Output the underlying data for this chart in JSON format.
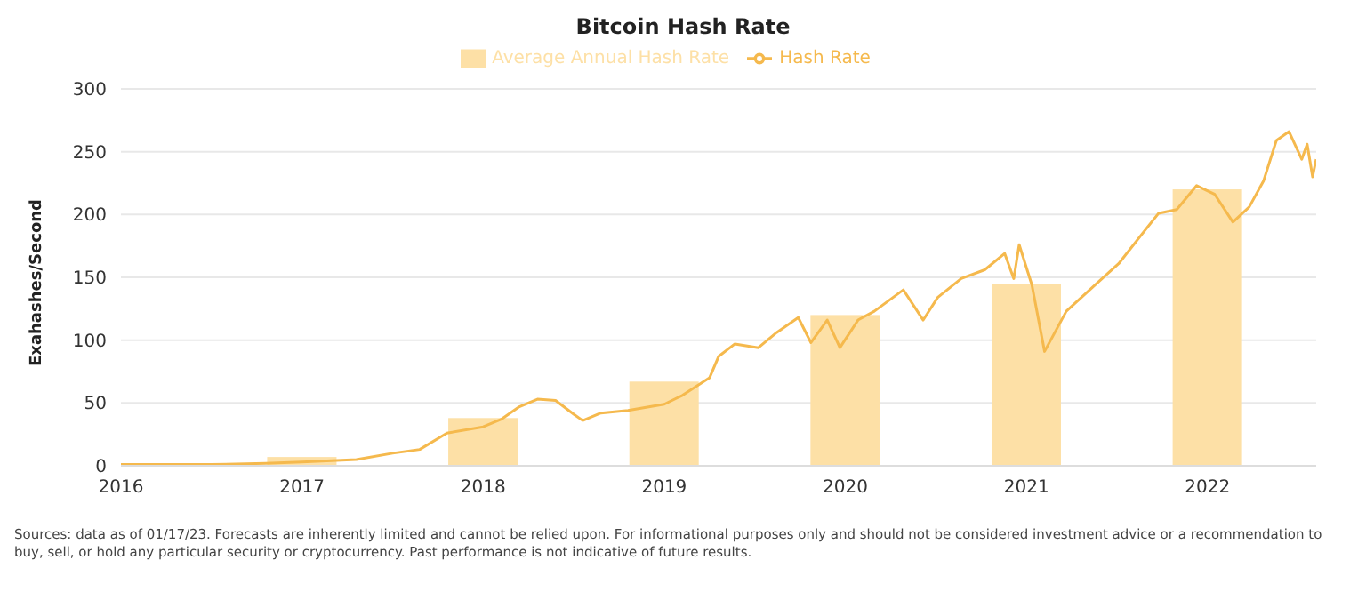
{
  "chart_data": {
    "type": "line",
    "title": "Bitcoin Hash Rate",
    "ylabel": "Exahashes/Second",
    "xlim": [
      2016,
      2022.6
    ],
    "xticks": [
      2016,
      2017,
      2018,
      2019,
      2020,
      2021,
      2022
    ],
    "ylim": [
      0,
      300
    ],
    "yticks": [
      0,
      50,
      100,
      150,
      200,
      250,
      300
    ],
    "grid": "y",
    "legend": "top",
    "series": [
      {
        "name": "Average Annual Hash Rate",
        "type": "bar",
        "color": "#fde0a6",
        "x": [
          2017,
          2018,
          2019,
          2020,
          2021,
          2022
        ],
        "values": [
          7,
          38,
          67,
          120,
          145,
          220
        ]
      },
      {
        "name": "Hash Rate",
        "color": "#f5b94d",
        "x": [
          2016,
          2016.5,
          2016.8,
          2017,
          2017.3,
          2017.5,
          2017.65,
          2017.8,
          2018,
          2018.1,
          2018.2,
          2018.3,
          2018.4,
          2018.5,
          2018.55,
          2018.65,
          2018.8,
          2019,
          2019.1,
          2019.25,
          2019.3,
          2019.39,
          2019.52,
          2019.62,
          2019.74,
          2019.81,
          2019.9,
          2019.97,
          2020.07,
          2020.16,
          2020.32,
          2020.43,
          2020.51,
          2020.64,
          2020.77,
          2020.88,
          2020.93,
          2020.96,
          2021.03,
          2021.1,
          2021.22,
          2021.38,
          2021.51,
          2021.63,
          2021.73,
          2021.83,
          2021.94,
          2022.04,
          2022.14,
          2022.23,
          2022.31,
          2022.38,
          2022.45,
          2022.52,
          2022.55,
          2022.58,
          2022.6
        ],
        "values": [
          1,
          1,
          2,
          3,
          5,
          10,
          13,
          26,
          31,
          37,
          47,
          53,
          52,
          41,
          36,
          42,
          44,
          49,
          56,
          70,
          87,
          97,
          94,
          106,
          118,
          98,
          116,
          94,
          116,
          123,
          140,
          116,
          134,
          149,
          156,
          169,
          149,
          176,
          144,
          91,
          123,
          144,
          161,
          183,
          201,
          204,
          223,
          216,
          194,
          206,
          227,
          259,
          266,
          244,
          256,
          230,
          244
        ]
      }
    ],
    "annotations": [
      "Sources: data as of 01/17/23. Forecasts are inherently limited and cannot be relied upon. For informational purposes only and should not be considered investment advice or a recommendation to buy, sell, or hold any particular security or cryptocurrency. Past performance is not indicative of future results."
    ]
  }
}
